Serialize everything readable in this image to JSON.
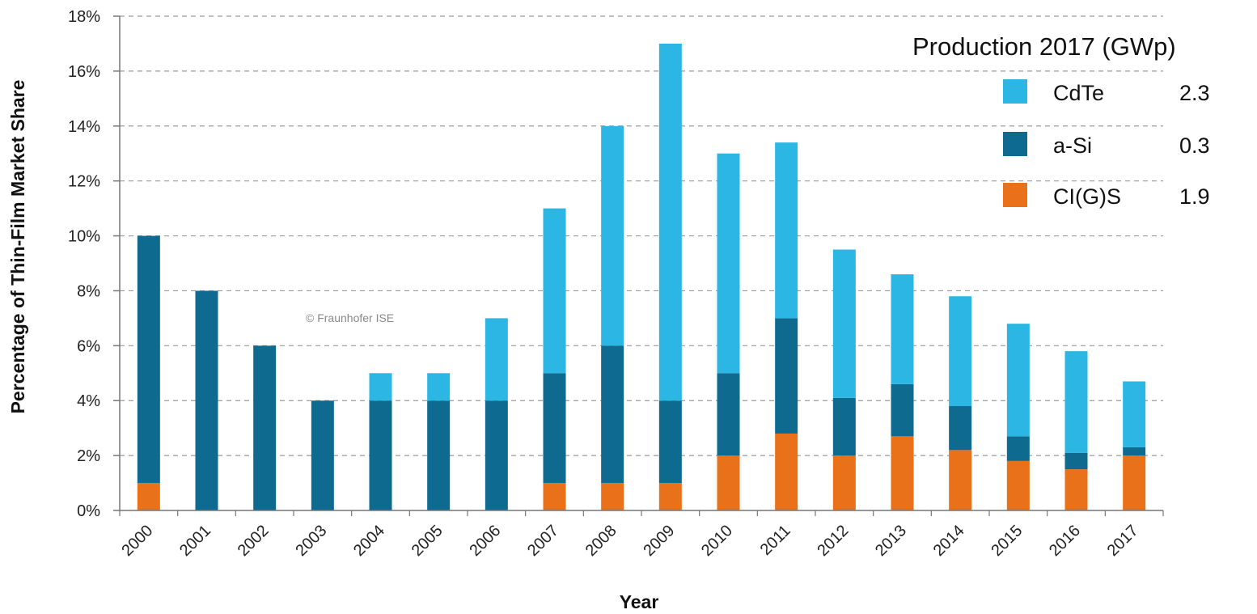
{
  "chart_data": {
    "type": "bar",
    "stacked": true,
    "xlabel": "Year",
    "ylabel": "Percentage of Thin-Film Market Share",
    "ylim": [
      0,
      18
    ],
    "yticks": [
      0,
      2,
      4,
      6,
      8,
      10,
      12,
      14,
      16,
      18
    ],
    "ytick_suffix": "%",
    "grid": true,
    "categories": [
      "2000",
      "2001",
      "2002",
      "2003",
      "2004",
      "2005",
      "2006",
      "2007",
      "2008",
      "2009",
      "2010",
      "2011",
      "2012",
      "2013",
      "2014",
      "2015",
      "2016",
      "2017"
    ],
    "series": [
      {
        "name": "CI(G)S",
        "color": "#e8711a",
        "values": [
          1,
          0,
          0,
          0,
          0,
          0,
          0,
          1,
          1,
          1,
          2,
          2.8,
          2,
          2.7,
          2.2,
          1.8,
          1.5,
          2.0
        ]
      },
      {
        "name": "a-Si",
        "color": "#0e6a8f",
        "values": [
          9,
          8,
          6,
          4,
          4,
          4,
          4,
          4,
          5,
          3,
          3,
          4.2,
          2.1,
          1.9,
          1.6,
          0.9,
          0.6,
          0.3
        ]
      },
      {
        "name": "CdTe",
        "color": "#2cb6e3",
        "values": [
          0,
          0,
          0,
          0,
          1,
          1,
          3,
          6,
          8,
          13,
          8,
          6.4,
          5.4,
          4.0,
          4.0,
          4.1,
          3.7,
          2.4
        ]
      }
    ],
    "legend": {
      "title": "Production 2017 (GWp)",
      "position": "top-right",
      "entries": [
        {
          "name": "CdTe",
          "value": "2.3",
          "color": "#2cb6e3"
        },
        {
          "name": "a-Si",
          "value": "0.3",
          "color": "#0e6a8f"
        },
        {
          "name": "CI(G)S",
          "value": "1.9",
          "color": "#e8711a"
        }
      ]
    },
    "annotation": "© Fraunhofer ISE"
  }
}
